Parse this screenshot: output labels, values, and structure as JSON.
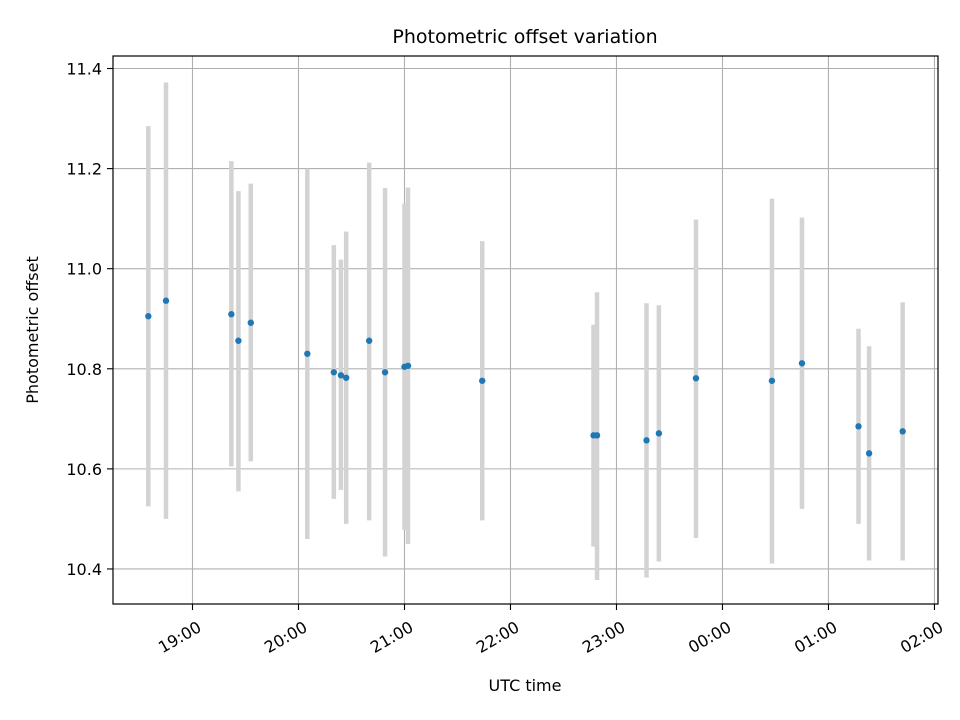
{
  "chart_data": {
    "type": "scatter",
    "title": "Photometric offset variation",
    "xlabel": "UTC time",
    "ylabel": "Photometric offset",
    "x_axis_type": "time",
    "xlim": [
      "18:15",
      "02:02"
    ],
    "ylim": [
      10.33,
      11.425
    ],
    "x_ticks": [
      "19:00",
      "20:00",
      "21:00",
      "22:00",
      "23:00",
      "00:00",
      "01:00",
      "02:00"
    ],
    "y_ticks": [
      10.4,
      10.6,
      10.8,
      11.0,
      11.2,
      11.4
    ],
    "grid": true,
    "marker_color": "#1f77b4",
    "errorbar_color": "#d3d3d3",
    "points": [
      {
        "time": "18:35",
        "value": 10.905,
        "low": 10.525,
        "high": 11.285
      },
      {
        "time": "18:45",
        "value": 10.936,
        "low": 10.5,
        "high": 11.372
      },
      {
        "time": "19:22",
        "value": 10.909,
        "low": 10.605,
        "high": 11.215
      },
      {
        "time": "19:26",
        "value": 10.856,
        "low": 10.555,
        "high": 11.155
      },
      {
        "time": "19:33",
        "value": 10.892,
        "low": 10.615,
        "high": 11.17
      },
      {
        "time": "20:05",
        "value": 10.83,
        "low": 10.46,
        "high": 11.2
      },
      {
        "time": "20:20",
        "value": 10.793,
        "low": 10.54,
        "high": 11.047
      },
      {
        "time": "20:24",
        "value": 10.787,
        "low": 10.558,
        "high": 11.018
      },
      {
        "time": "20:27",
        "value": 10.782,
        "low": 10.49,
        "high": 11.074
      },
      {
        "time": "20:40",
        "value": 10.856,
        "low": 10.497,
        "high": 11.212
      },
      {
        "time": "20:49",
        "value": 10.793,
        "low": 10.425,
        "high": 11.161
      },
      {
        "time": "21:00",
        "value": 10.804,
        "low": 10.478,
        "high": 11.13
      },
      {
        "time": "21:02",
        "value": 10.806,
        "low": 10.45,
        "high": 11.162
      },
      {
        "time": "21:44",
        "value": 10.776,
        "low": 10.497,
        "high": 11.055
      },
      {
        "time": "22:47",
        "value": 10.667,
        "low": 10.445,
        "high": 10.888
      },
      {
        "time": "22:49",
        "value": 10.667,
        "low": 10.378,
        "high": 10.953
      },
      {
        "time": "23:17",
        "value": 10.657,
        "low": 10.383,
        "high": 10.931
      },
      {
        "time": "23:24",
        "value": 10.671,
        "low": 10.415,
        "high": 10.927
      },
      {
        "time": "23:45",
        "value": 10.781,
        "low": 10.462,
        "high": 11.098
      },
      {
        "time": "00:28",
        "value": 10.776,
        "low": 10.411,
        "high": 11.14
      },
      {
        "time": "00:45",
        "value": 10.811,
        "low": 10.52,
        "high": 11.102
      },
      {
        "time": "01:17",
        "value": 10.685,
        "low": 10.49,
        "high": 10.88
      },
      {
        "time": "01:23",
        "value": 10.631,
        "low": 10.417,
        "high": 10.845
      },
      {
        "time": "01:42",
        "value": 10.675,
        "low": 10.417,
        "high": 10.933
      }
    ]
  }
}
